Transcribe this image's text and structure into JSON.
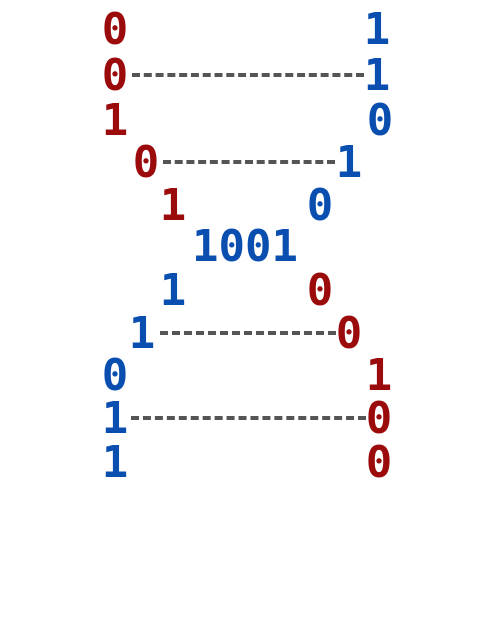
{
  "rows": [
    {
      "left": "0",
      "left_color": "red",
      "right": "1",
      "right_color": "blue",
      "rung": false
    },
    {
      "left": "0",
      "left_color": "red",
      "right": "1",
      "right_color": "blue",
      "rung": true
    },
    {
      "left": "1",
      "left_color": "red",
      "right": "0",
      "right_color": "blue",
      "rung": false
    },
    {
      "left": "0",
      "left_color": "red",
      "right": "1",
      "right_color": "blue",
      "rung": true
    },
    {
      "left": "1",
      "left_color": "red",
      "right": "0",
      "right_color": "blue",
      "rung": false
    },
    {
      "center": "1001"
    },
    {
      "left": "1",
      "left_color": "blue",
      "right": "0",
      "right_color": "red",
      "rung": false
    },
    {
      "left": "1",
      "left_color": "blue",
      "right": "0",
      "right_color": "red",
      "rung": true
    },
    {
      "left": "0",
      "left_color": "blue",
      "right": "1",
      "right_color": "red",
      "rung": false
    },
    {
      "left": "1",
      "left_color": "blue",
      "right": "0",
      "right_color": "red",
      "rung": true
    },
    {
      "left": "1",
      "left_color": "blue",
      "right": "0",
      "right_color": "red",
      "rung": false
    }
  ],
  "colors": {
    "red": "#9b0b0b",
    "blue": "#0a4fb0",
    "rung": "#555555"
  }
}
